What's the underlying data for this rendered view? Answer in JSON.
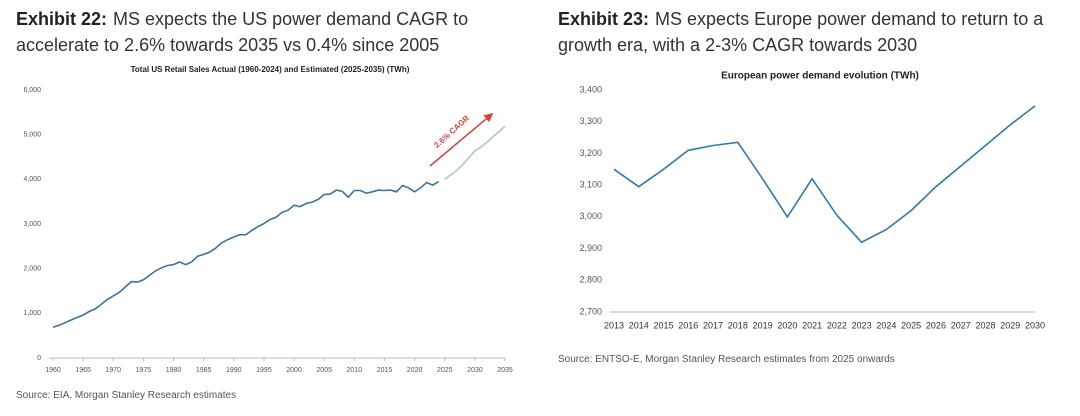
{
  "chart_data": [
    {
      "type": "line",
      "exhibit": "Exhibit 22:",
      "heading": "MS expects the US power demand CAGR to accelerate to 2.6% towards 2035 vs 0.4% since 2005",
      "title": "Total US Retail Sales Actual (1960-2024) and Estimated (2025-2035) (TWh)",
      "source": "Source: EIA, Morgan Stanley Research estimates",
      "annotation": "2.6% CAGR",
      "x": [
        1960,
        1961,
        1962,
        1963,
        1964,
        1965,
        1966,
        1967,
        1968,
        1969,
        1970,
        1971,
        1972,
        1973,
        1974,
        1975,
        1976,
        1977,
        1978,
        1979,
        1980,
        1981,
        1982,
        1983,
        1984,
        1985,
        1986,
        1987,
        1988,
        1989,
        1990,
        1991,
        1992,
        1993,
        1994,
        1995,
        1996,
        1997,
        1998,
        1999,
        2000,
        2001,
        2002,
        2003,
        2004,
        2005,
        2006,
        2007,
        2008,
        2009,
        2010,
        2011,
        2012,
        2013,
        2014,
        2015,
        2016,
        2017,
        2018,
        2019,
        2020,
        2021,
        2022,
        2023,
        2024,
        2025,
        2026,
        2027,
        2028,
        2029,
        2030,
        2031,
        2032,
        2033,
        2034,
        2035
      ],
      "series": [
        {
          "name": "Actual",
          "color": "#3a72aa",
          "values": [
            690,
            730,
            790,
            850,
            910,
            960,
            1040,
            1100,
            1200,
            1310,
            1390,
            1470,
            1590,
            1710,
            1700,
            1750,
            1850,
            1950,
            2020,
            2070,
            2090,
            2150,
            2090,
            2150,
            2280,
            2320,
            2370,
            2460,
            2580,
            2650,
            2710,
            2760,
            2760,
            2860,
            2940,
            3010,
            3100,
            3150,
            3260,
            3310,
            3420,
            3390,
            3460,
            3490,
            3550,
            3660,
            3670,
            3760,
            3730,
            3600,
            3750,
            3750,
            3690,
            3720,
            3760,
            3750,
            3760,
            3720,
            3860,
            3810,
            3720,
            3810,
            3930,
            3870,
            3950,
            null,
            null,
            null,
            null,
            null,
            null,
            null,
            null,
            null,
            null,
            null
          ]
        },
        {
          "name": "Estimated",
          "color": "#a8c6e2",
          "values": [
            null,
            null,
            null,
            null,
            null,
            null,
            null,
            null,
            null,
            null,
            null,
            null,
            null,
            null,
            null,
            null,
            null,
            null,
            null,
            null,
            null,
            null,
            null,
            null,
            null,
            null,
            null,
            null,
            null,
            null,
            null,
            null,
            null,
            null,
            null,
            null,
            null,
            null,
            null,
            null,
            null,
            null,
            null,
            null,
            null,
            null,
            null,
            null,
            null,
            null,
            null,
            null,
            null,
            null,
            null,
            null,
            null,
            null,
            null,
            null,
            null,
            null,
            null,
            null,
            null,
            4000,
            4100,
            4200,
            4330,
            4480,
            4640,
            4720,
            4830,
            4950,
            5070,
            5190
          ]
        }
      ],
      "xlim": [
        1960,
        2035
      ],
      "xticks": [
        1960,
        1965,
        1970,
        1975,
        1980,
        1985,
        1990,
        1995,
        2000,
        2005,
        2010,
        2015,
        2020,
        2025,
        2030,
        2035
      ],
      "ylim": [
        0,
        6000
      ],
      "yticks": [
        0,
        {
          "value": 1000,
          "label": "1,000"
        },
        {
          "value": 2000,
          "label": "2,000"
        },
        {
          "value": 3000,
          "label": "3,000"
        },
        {
          "value": 4000,
          "label": "4,000"
        },
        {
          "value": 5000,
          "label": "5,000"
        },
        {
          "value": 6000,
          "label": "6,000"
        }
      ],
      "grid": false
    },
    {
      "type": "line",
      "exhibit": "Exhibit 23:",
      "heading": "MS expects Europe power demand to return to a growth era, with a 2-3% CAGR towards 2030",
      "title": "European power demand evolution (TWh)",
      "source": "Source: ENTSO-E, Morgan Stanley Research estimates from 2025 onwards",
      "categories": [
        "2013",
        "2014",
        "2015",
        "2016",
        "2017",
        "2018",
        "2019",
        "2020",
        "2021",
        "2022",
        "2023",
        "2024",
        "2025",
        "2026",
        "2027",
        "2028",
        "2029",
        "2030"
      ],
      "series": [
        {
          "name": "European power demand",
          "color": "#2f78b5",
          "values": [
            3150,
            3095,
            3150,
            3210,
            3225,
            3235,
            3120,
            3000,
            3120,
            3005,
            2920,
            2960,
            3020,
            3095,
            3160,
            3225,
            3290,
            3350
          ]
        }
      ],
      "ylim": [
        2700,
        3400
      ],
      "yticks": [
        {
          "value": 2700,
          "label": "2,700"
        },
        {
          "value": 2800,
          "label": "2,800"
        },
        {
          "value": 2900,
          "label": "2,900"
        },
        {
          "value": 3000,
          "label": "3,000"
        },
        {
          "value": 3100,
          "label": "3,100"
        },
        {
          "value": 3200,
          "label": "3,200"
        },
        {
          "value": 3300,
          "label": "3,300"
        },
        {
          "value": 3400,
          "label": "3,400"
        }
      ],
      "grid": false
    }
  ]
}
